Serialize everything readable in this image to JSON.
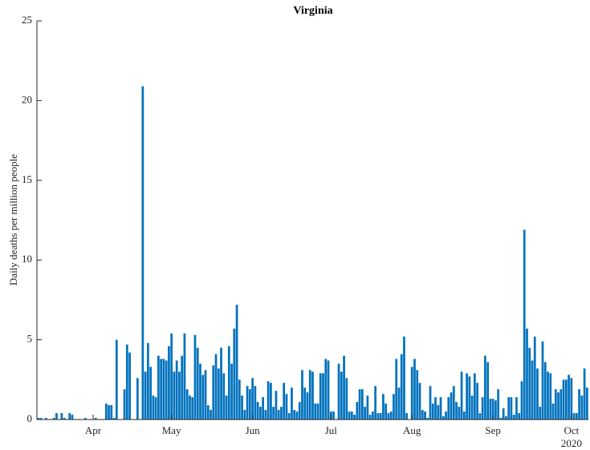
{
  "chart_data": {
    "type": "bar",
    "title": "Virginia",
    "ylabel": "Daily deaths per million people",
    "x_year": "2020",
    "color": "#0072bd",
    "x": [
      71,
      72,
      73,
      74,
      75,
      76,
      77,
      78,
      79,
      80,
      81,
      82,
      83,
      84,
      85,
      86,
      87,
      88,
      89,
      90,
      91,
      92,
      93,
      94,
      95,
      96,
      97,
      98,
      99,
      100,
      101,
      102,
      103,
      104,
      105,
      106,
      107,
      108,
      109,
      110,
      111,
      112,
      113,
      114,
      115,
      116,
      117,
      118,
      119,
      120,
      121,
      122,
      123,
      124,
      125,
      126,
      127,
      128,
      129,
      130,
      131,
      132,
      133,
      134,
      135,
      136,
      137,
      138,
      139,
      140,
      141,
      142,
      143,
      144,
      145,
      146,
      147,
      148,
      149,
      150,
      151,
      152,
      153,
      154,
      155,
      156,
      157,
      158,
      159,
      160,
      161,
      162,
      163,
      164,
      165,
      166,
      167,
      168,
      169,
      170,
      171,
      172,
      173,
      174,
      175,
      176,
      177,
      178,
      179,
      180,
      181,
      182,
      183,
      184,
      185,
      186,
      187,
      188,
      189,
      190,
      191,
      192,
      193,
      194,
      195,
      196,
      197,
      198,
      199,
      200,
      201,
      202,
      203,
      204,
      205,
      206,
      207,
      208,
      209,
      210,
      211,
      212,
      213,
      214,
      215,
      216,
      217,
      218,
      219,
      220,
      221,
      222,
      223,
      224,
      225,
      226,
      227,
      228,
      229,
      230,
      231,
      232,
      233,
      234,
      235,
      236,
      237,
      238,
      239,
      240,
      241,
      242,
      243,
      244,
      245,
      246,
      247,
      248,
      249,
      250,
      251,
      252,
      253,
      254,
      255,
      256,
      257,
      258,
      259,
      260,
      261,
      262,
      263,
      264,
      265,
      266,
      267,
      268,
      269,
      270,
      271,
      272,
      273,
      274,
      275,
      276,
      277,
      278,
      279,
      280,
      281
    ],
    "values": [
      0.1,
      0.1,
      0,
      0.1,
      0,
      0,
      0.1,
      0.4,
      0,
      0.4,
      0.1,
      0,
      0.4,
      0.3,
      0,
      0,
      0,
      0,
      0.1,
      0,
      0,
      0,
      0.1,
      0,
      0,
      0,
      1.0,
      0.9,
      0.9,
      0.1,
      5.0,
      0,
      0,
      1.9,
      4.7,
      4.2,
      0,
      0,
      2.6,
      0,
      20.9,
      3.0,
      4.8,
      3.3,
      1.5,
      1.4,
      4.0,
      3.8,
      3.8,
      3.7,
      4.6,
      5.4,
      3.0,
      3.7,
      3.0,
      4.0,
      5.4,
      1.9,
      1.5,
      1.4,
      5.3,
      4.5,
      3.5,
      2.8,
      3.1,
      0.9,
      0.6,
      3.4,
      4.1,
      3.2,
      4.5,
      2.9,
      1.5,
      4.6,
      3.5,
      5.7,
      7.2,
      2.5,
      1.5,
      0.6,
      2.1,
      1.9,
      2.6,
      2.1,
      1.1,
      0.8,
      1.4,
      0.6,
      2.4,
      2.3,
      0.8,
      1.8,
      0.6,
      0.8,
      2.3,
      1.6,
      0.4,
      2.0,
      0.6,
      0.5,
      1.1,
      3.1,
      2.0,
      1.7,
      3.1,
      3.0,
      1.0,
      1.0,
      2.9,
      2.9,
      3.8,
      3.7,
      0.5,
      0.5,
      0,
      3.5,
      3.0,
      4.0,
      2.6,
      0.5,
      0.5,
      0.3,
      1.1,
      1.9,
      1.9,
      0.8,
      1.5,
      0.3,
      0.5,
      2.1,
      0.4,
      0.4,
      1.6,
      1.0,
      0.4,
      0.5,
      1.6,
      3.8,
      2.0,
      4.1,
      5.2,
      0.4,
      0,
      3.3,
      3.8,
      3.1,
      2.3,
      0.6,
      0.5,
      0.1,
      2.1,
      1.0,
      1.4,
      0.9,
      1.4,
      0.2,
      0.5,
      1.4,
      1.7,
      2.1,
      1.1,
      0.8,
      3.0,
      0.5,
      2.9,
      2.7,
      1.5,
      2.9,
      2.3,
      0.4,
      1.4,
      4.0,
      3.6,
      1.3,
      1.3,
      1.2,
      1.9,
      0.1,
      0.7,
      0.2,
      1.4,
      1.4,
      0.3,
      1.4,
      0.4,
      2.4,
      11.9,
      5.7,
      4.5,
      3.7,
      5.2,
      3.2,
      0.8,
      4.9,
      3.6,
      3.0,
      2.9,
      1.0,
      1.9,
      1.7,
      1.9,
      2.5,
      2.5,
      2.8,
      2.6,
      0.4,
      0.4,
      1.9,
      1.5,
      3.2,
      2.0
    ],
    "xlim": [
      70.5,
      281.5
    ],
    "xticks": [
      {
        "value": 92,
        "label": "Apr"
      },
      {
        "value": 122,
        "label": "May"
      },
      {
        "value": 153,
        "label": "Jun"
      },
      {
        "value": 183,
        "label": "Jul"
      },
      {
        "value": 214,
        "label": "Aug"
      },
      {
        "value": 245,
        "label": "Sep"
      },
      {
        "value": 275,
        "label": "Oct"
      }
    ],
    "ylim": [
      0,
      25
    ],
    "yticks": [
      0,
      5,
      10,
      15,
      20,
      25
    ],
    "grid": false
  }
}
